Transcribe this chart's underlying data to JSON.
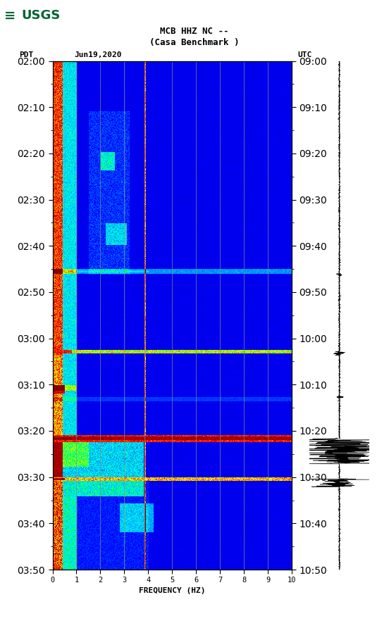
{
  "title_line1": "MCB HHZ NC --",
  "title_line2": "(Casa Benchmark )",
  "left_label": "PDT",
  "date_label": "Jun19,2020",
  "right_label": "UTC",
  "left_times": [
    "02:00",
    "02:10",
    "02:20",
    "02:30",
    "02:40",
    "02:50",
    "03:00",
    "03:10",
    "03:20",
    "03:30",
    "03:40",
    "03:50"
  ],
  "right_times": [
    "09:00",
    "09:10",
    "09:20",
    "09:30",
    "09:40",
    "09:50",
    "10:00",
    "10:10",
    "10:20",
    "10:30",
    "10:40",
    "10:50"
  ],
  "xlabel": "FREQUENCY (HZ)",
  "freq_min": 0,
  "freq_max": 10,
  "freq_ticks": [
    0,
    1,
    2,
    3,
    4,
    5,
    6,
    7,
    8,
    9,
    10
  ],
  "n_time": 700,
  "n_freq": 500,
  "background_color": "#ffffff",
  "vertical_lines_freq": [
    1.0,
    2.0,
    3.0,
    3.85,
    5.0,
    6.0,
    7.0,
    8.0,
    9.0
  ],
  "usgs_color": "#006633",
  "figsize": [
    5.52,
    8.92
  ],
  "dpi": 100
}
